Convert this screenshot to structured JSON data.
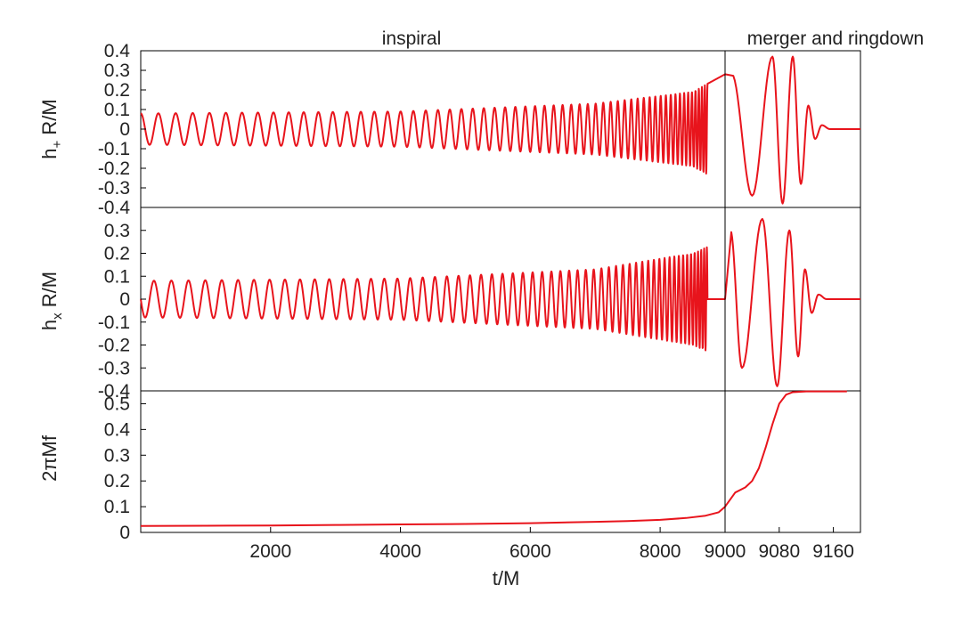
{
  "chart_data": {
    "type": "line",
    "title": "",
    "regions": [
      {
        "label": "inspiral",
        "x_range": [
          0,
          9000
        ]
      },
      {
        "label": "merger and ringdown",
        "x_range": [
          9000,
          9200
        ]
      }
    ],
    "divider_x": 9000,
    "xlabel": "t/M",
    "x_axis": {
      "note": "piecewise scale: linear 0–9000 on left segment, stretched 9000–9200 on right segment",
      "ticks": [
        "2000",
        "4000",
        "6000",
        "8000",
        "9000",
        "9080",
        "9160"
      ],
      "tick_values": [
        2000,
        4000,
        6000,
        8000,
        9000,
        9080,
        9160
      ],
      "segments": [
        [
          0,
          9000
        ],
        [
          9000,
          9200
        ]
      ]
    },
    "panels": [
      {
        "id": "h-plus",
        "ylabel": "h",
        "ylabel_sub": "+",
        "ylabel_suffix": " R/M",
        "ylim": [
          -0.4,
          0.4
        ],
        "yticks": [
          "0.4",
          "0.3",
          "0.2",
          "0.1",
          "0",
          "-0.1",
          "-0.2",
          "-0.3",
          "-0.4"
        ],
        "ytick_values": [
          0.4,
          0.3,
          0.2,
          0.1,
          0,
          -0.1,
          -0.2,
          -0.3,
          -0.4
        ],
        "series": [
          {
            "name": "h_plus",
            "color": "#e8141c",
            "model": "chirp",
            "inspiral_amplitude": [
              [
                0,
                0.08
              ],
              [
                4000,
                0.09
              ],
              [
                7000,
                0.13
              ],
              [
                8500,
                0.19
              ],
              [
                9000,
                0.28
              ]
            ],
            "inspiral_cycles": 58,
            "phase_offset": 0.0,
            "merger_peaks": [
              [
                9010,
                0.28
              ],
              [
                9040,
                -0.34
              ],
              [
                9070,
                0.37
              ],
              [
                9085,
                -0.38
              ],
              [
                9100,
                0.37
              ],
              [
                9112,
                -0.28
              ],
              [
                9123,
                0.12
              ],
              [
                9133,
                -0.05
              ],
              [
                9143,
                0.02
              ],
              [
                9155,
                0.0
              ],
              [
                9200,
                0.0
              ]
            ]
          }
        ]
      },
      {
        "id": "h-cross",
        "ylabel": "h",
        "ylabel_sub": "x",
        "ylabel_suffix": " R/M",
        "ylim": [
          -0.4,
          0.4
        ],
        "yticks": [
          "0.3",
          "0.2",
          "0.1",
          "0",
          "-0.1",
          "-0.2",
          "-0.3",
          "-0.4"
        ],
        "ytick_values": [
          0.3,
          0.2,
          0.1,
          0,
          -0.1,
          -0.2,
          -0.3,
          -0.4
        ],
        "series": [
          {
            "name": "h_cross",
            "color": "#e8141c",
            "model": "chirp",
            "inspiral_amplitude": [
              [
                0,
                0.08
              ],
              [
                4000,
                0.09
              ],
              [
                7000,
                0.13
              ],
              [
                8500,
                0.2
              ],
              [
                9000,
                0.26
              ]
            ],
            "inspiral_cycles": 58,
            "phase_offset": 1.57,
            "merger_peaks": [
              [
                9008,
                0.3
              ],
              [
                9025,
                -0.3
              ],
              [
                9055,
                0.35
              ],
              [
                9077,
                -0.38
              ],
              [
                9095,
                0.3
              ],
              [
                9108,
                -0.25
              ],
              [
                9118,
                0.13
              ],
              [
                9128,
                -0.06
              ],
              [
                9138,
                0.02
              ],
              [
                9150,
                0.0
              ],
              [
                9200,
                0.0
              ]
            ]
          }
        ]
      },
      {
        "id": "frequency",
        "ylabel": "2πMf",
        "ylim": [
          0,
          0.55
        ],
        "yticks": [
          "0.5",
          "0.4",
          "0.3",
          "0.2",
          "0.1",
          "0"
        ],
        "ytick_values": [
          0.5,
          0.4,
          0.3,
          0.2,
          0.1,
          0
        ],
        "series": [
          {
            "name": "2piMf",
            "color": "#e8141c",
            "model": "points",
            "x": [
              0,
              1000,
              2000,
              3000,
              4000,
              5000,
              6000,
              7000,
              7500,
              8000,
              8400,
              8700,
              8900,
              9000,
              9015,
              9030,
              9040,
              9050,
              9060,
              9070,
              9080,
              9090,
              9100,
              9120,
              9140,
              9160,
              9180
            ],
            "y": [
              0.025,
              0.026,
              0.027,
              0.029,
              0.031,
              0.033,
              0.036,
              0.041,
              0.044,
              0.049,
              0.056,
              0.065,
              0.078,
              0.1,
              0.155,
              0.175,
              0.2,
              0.25,
              0.33,
              0.42,
              0.5,
              0.535,
              0.545,
              0.548,
              0.548,
              0.548,
              0.548
            ]
          }
        ]
      }
    ]
  }
}
